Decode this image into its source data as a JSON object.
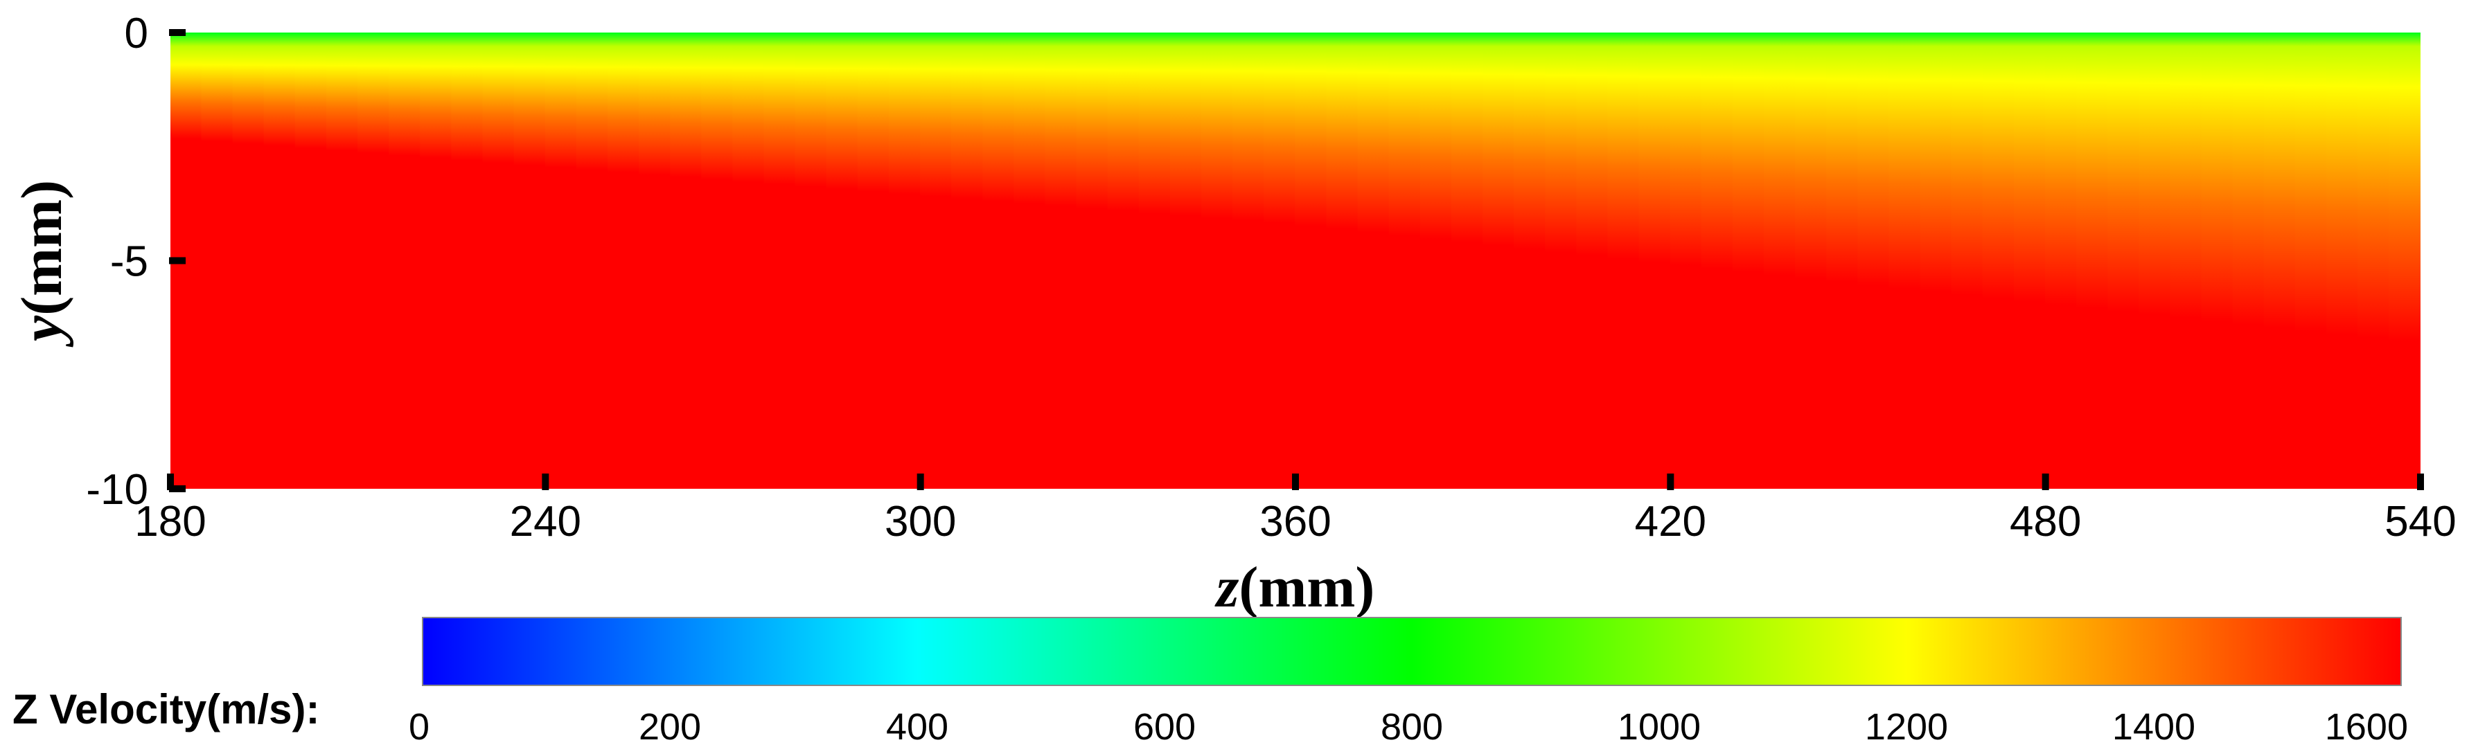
{
  "chart_data": {
    "type": "heatmap",
    "x": {
      "label_var": "z",
      "label_unit": "(mm)",
      "range": [
        180,
        540
      ],
      "ticks": [
        180,
        240,
        300,
        360,
        420,
        480,
        540
      ],
      "tick_labels": [
        "180",
        "240",
        "300",
        "360",
        "420",
        "480",
        "540"
      ]
    },
    "y": {
      "label_var": "y",
      "label_unit": "(mm)",
      "range": [
        -10,
        0
      ],
      "ticks": [
        0,
        -5,
        -10
      ],
      "tick_labels": [
        "0",
        "-5",
        "-10"
      ]
    },
    "field": {
      "name": "Z Velocity",
      "description_profile": [
        {
          "z": 180,
          "y_transition_top": -0.3,
          "y_yellow": -0.7,
          "y_saturation": -2.3
        },
        {
          "z": 360,
          "y_transition_top": -0.3,
          "y_yellow": -0.85,
          "y_saturation": -4.2
        },
        {
          "z": 540,
          "y_transition_top": -0.3,
          "y_yellow": -1.2,
          "y_saturation": -6.8
        }
      ],
      "surface_value": 800,
      "yellow_value": 1200,
      "core_value": 1600
    },
    "colorbar": {
      "title": "Z Velocity(m/s):",
      "range": [
        0,
        1600
      ],
      "ticks": [
        0,
        200,
        400,
        600,
        800,
        1000,
        1200,
        1400,
        1600
      ],
      "tick_labels": [
        "0",
        "200",
        "400",
        "600",
        "800",
        "1000",
        "1200",
        "1400",
        "1600"
      ],
      "colormap": [
        {
          "value": 0,
          "color": "#0000ff"
        },
        {
          "value": 400,
          "color": "#00ffff"
        },
        {
          "value": 800,
          "color": "#00ff00"
        },
        {
          "value": 1200,
          "color": "#ffff00"
        },
        {
          "value": 1600,
          "color": "#ff0000"
        }
      ]
    }
  }
}
